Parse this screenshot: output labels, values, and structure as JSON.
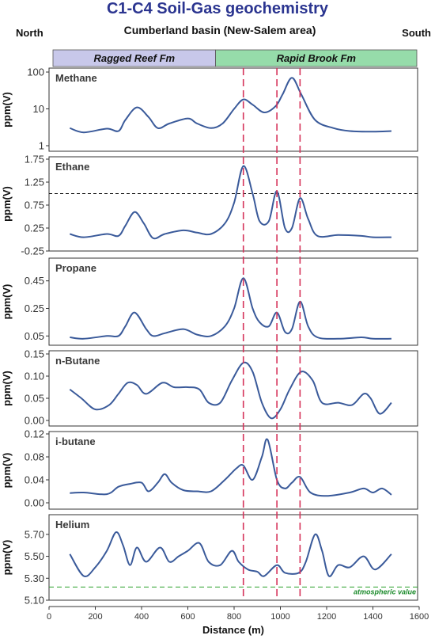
{
  "title": "C1-C4 Soil-Gas geochemistry",
  "subtitle": "Cumberland basin (New-Salem area)",
  "direction_left": "North",
  "direction_right": "South",
  "formations": [
    {
      "label": "Ragged Reef Fm",
      "x_start": 0,
      "x_end": 720,
      "color": "#c8c8ea"
    },
    {
      "label": "Rapid Brook Fm",
      "x_start": 720,
      "x_end": 1600,
      "color": "#96dcaa"
    }
  ],
  "colors": {
    "line": "#3a5a9a",
    "marker": "#d6335a",
    "threshold": "#111111",
    "atmospheric": "#2aa02a"
  },
  "chart_data": {
    "type": "line",
    "xlabel": "Distance (m)",
    "xlim": [
      0,
      1600
    ],
    "x_ticks": [
      0,
      200,
      400,
      600,
      800,
      1000,
      1200,
      1400,
      1600
    ],
    "vertical_markers_x": [
      840,
      985,
      1085
    ],
    "panels": [
      {
        "name": "Methane",
        "ylabel": "ppm(V)",
        "scale": "log",
        "ylim": [
          1,
          100
        ],
        "y_ticks": [
          1,
          10,
          100
        ],
        "y_tick_labels": [
          "1",
          "10",
          "100"
        ],
        "points": [
          [
            90,
            3
          ],
          [
            150,
            2.3
          ],
          [
            250,
            2.9
          ],
          [
            300,
            2.5
          ],
          [
            330,
            5
          ],
          [
            380,
            11
          ],
          [
            430,
            6
          ],
          [
            470,
            3
          ],
          [
            520,
            4
          ],
          [
            600,
            5.5
          ],
          [
            640,
            4
          ],
          [
            700,
            3
          ],
          [
            750,
            4
          ],
          [
            800,
            10
          ],
          [
            840,
            18
          ],
          [
            880,
            13
          ],
          [
            930,
            8
          ],
          [
            980,
            12
          ],
          [
            1010,
            25
          ],
          [
            1050,
            70
          ],
          [
            1090,
            25
          ],
          [
            1150,
            5
          ],
          [
            1230,
            3
          ],
          [
            1300,
            2.5
          ],
          [
            1400,
            2.4
          ],
          [
            1480,
            2.5
          ]
        ]
      },
      {
        "name": "Ethane",
        "ylabel": "ppm(V)",
        "scale": "linear",
        "ylim": [
          -0.25,
          1.75
        ],
        "y_ticks": [
          -0.25,
          0.25,
          0.75,
          1.25,
          1.75
        ],
        "y_tick_labels": [
          "-0.25",
          "0.25",
          "0.75",
          "1.25",
          "1.75"
        ],
        "threshold": 1.0,
        "points": [
          [
            90,
            0.12
          ],
          [
            150,
            0.05
          ],
          [
            250,
            0.12
          ],
          [
            300,
            0.08
          ],
          [
            330,
            0.3
          ],
          [
            370,
            0.6
          ],
          [
            410,
            0.35
          ],
          [
            450,
            0.03
          ],
          [
            500,
            0.12
          ],
          [
            580,
            0.2
          ],
          [
            640,
            0.15
          ],
          [
            700,
            0.12
          ],
          [
            760,
            0.35
          ],
          [
            800,
            0.8
          ],
          [
            840,
            1.6
          ],
          [
            880,
            1.0
          ],
          [
            910,
            0.4
          ],
          [
            950,
            0.4
          ],
          [
            985,
            1.05
          ],
          [
            1020,
            0.25
          ],
          [
            1050,
            0.25
          ],
          [
            1085,
            0.9
          ],
          [
            1120,
            0.45
          ],
          [
            1160,
            0.08
          ],
          [
            1250,
            0.1
          ],
          [
            1350,
            0.08
          ],
          [
            1400,
            0.05
          ],
          [
            1480,
            0.05
          ]
        ]
      },
      {
        "name": "Propane",
        "ylabel": "ppm(V)",
        "scale": "linear",
        "ylim": [
          0,
          0.5
        ],
        "y_ticks": [
          0.05,
          0.25,
          0.45
        ],
        "y_tick_labels": [
          "0.05",
          "0.25",
          "0.45"
        ],
        "points": [
          [
            90,
            0.04
          ],
          [
            150,
            0.03
          ],
          [
            250,
            0.05
          ],
          [
            300,
            0.05
          ],
          [
            330,
            0.12
          ],
          [
            370,
            0.22
          ],
          [
            420,
            0.1
          ],
          [
            450,
            0.05
          ],
          [
            500,
            0.07
          ],
          [
            580,
            0.1
          ],
          [
            640,
            0.06
          ],
          [
            700,
            0.05
          ],
          [
            760,
            0.12
          ],
          [
            800,
            0.25
          ],
          [
            840,
            0.47
          ],
          [
            880,
            0.25
          ],
          [
            910,
            0.15
          ],
          [
            950,
            0.12
          ],
          [
            985,
            0.22
          ],
          [
            1020,
            0.08
          ],
          [
            1050,
            0.1
          ],
          [
            1085,
            0.3
          ],
          [
            1120,
            0.12
          ],
          [
            1160,
            0.04
          ],
          [
            1250,
            0.03
          ],
          [
            1350,
            0.04
          ],
          [
            1400,
            0.03
          ],
          [
            1480,
            0.03
          ]
        ]
      },
      {
        "name": "n-Butane",
        "ylabel": "ppm(V)",
        "scale": "linear",
        "ylim": [
          0,
          0.15
        ],
        "y_ticks": [
          0,
          0.05,
          0.1,
          0.15
        ],
        "y_tick_labels": [
          "0.00",
          "0.05",
          "0.10",
          "0.15"
        ],
        "points": [
          [
            90,
            0.07
          ],
          [
            140,
            0.05
          ],
          [
            200,
            0.025
          ],
          [
            260,
            0.035
          ],
          [
            300,
            0.06
          ],
          [
            340,
            0.085
          ],
          [
            380,
            0.08
          ],
          [
            420,
            0.06
          ],
          [
            490,
            0.085
          ],
          [
            540,
            0.075
          ],
          [
            600,
            0.075
          ],
          [
            650,
            0.07
          ],
          [
            690,
            0.04
          ],
          [
            740,
            0.04
          ],
          [
            790,
            0.09
          ],
          [
            840,
            0.13
          ],
          [
            880,
            0.11
          ],
          [
            920,
            0.04
          ],
          [
            960,
            0.005
          ],
          [
            1000,
            0.025
          ],
          [
            1040,
            0.07
          ],
          [
            1090,
            0.11
          ],
          [
            1140,
            0.09
          ],
          [
            1180,
            0.04
          ],
          [
            1250,
            0.04
          ],
          [
            1310,
            0.035
          ],
          [
            1360,
            0.06
          ],
          [
            1390,
            0.05
          ],
          [
            1430,
            0.015
          ],
          [
            1480,
            0.04
          ]
        ]
      },
      {
        "name": "i-butane",
        "ylabel": "ppm(V)",
        "scale": "linear",
        "ylim": [
          0,
          0.12
        ],
        "y_ticks": [
          0,
          0.04,
          0.08,
          0.12
        ],
        "y_tick_labels": [
          "0.00",
          "0.04",
          "0.08",
          "0.12"
        ],
        "points": [
          [
            90,
            0.017
          ],
          [
            150,
            0.018
          ],
          [
            250,
            0.015
          ],
          [
            300,
            0.028
          ],
          [
            350,
            0.033
          ],
          [
            400,
            0.035
          ],
          [
            430,
            0.02
          ],
          [
            470,
            0.035
          ],
          [
            500,
            0.05
          ],
          [
            530,
            0.035
          ],
          [
            580,
            0.022
          ],
          [
            640,
            0.02
          ],
          [
            700,
            0.02
          ],
          [
            760,
            0.04
          ],
          [
            810,
            0.06
          ],
          [
            840,
            0.065
          ],
          [
            880,
            0.04
          ],
          [
            920,
            0.08
          ],
          [
            945,
            0.11
          ],
          [
            985,
            0.04
          ],
          [
            1020,
            0.025
          ],
          [
            1050,
            0.035
          ],
          [
            1085,
            0.045
          ],
          [
            1130,
            0.018
          ],
          [
            1200,
            0.012
          ],
          [
            1300,
            0.018
          ],
          [
            1360,
            0.025
          ],
          [
            1400,
            0.018
          ],
          [
            1440,
            0.025
          ],
          [
            1480,
            0.014
          ]
        ]
      },
      {
        "name": "Helium",
        "ylabel": "ppm(V)",
        "scale": "linear",
        "ylim": [
          5.1,
          5.8
        ],
        "y_ticks": [
          5.1,
          5.3,
          5.5,
          5.7
        ],
        "y_tick_labels": [
          "5.10",
          "5.30",
          "5.50",
          "5.70"
        ],
        "threshold": 5.22,
        "threshold_label": "atmospheric value",
        "points": [
          [
            90,
            5.52
          ],
          [
            150,
            5.32
          ],
          [
            200,
            5.4
          ],
          [
            250,
            5.55
          ],
          [
            290,
            5.72
          ],
          [
            320,
            5.6
          ],
          [
            350,
            5.42
          ],
          [
            380,
            5.58
          ],
          [
            420,
            5.45
          ],
          [
            480,
            5.58
          ],
          [
            520,
            5.45
          ],
          [
            560,
            5.5
          ],
          [
            600,
            5.55
          ],
          [
            650,
            5.62
          ],
          [
            690,
            5.45
          ],
          [
            740,
            5.42
          ],
          [
            790,
            5.55
          ],
          [
            820,
            5.45
          ],
          [
            860,
            5.38
          ],
          [
            900,
            5.36
          ],
          [
            930,
            5.32
          ],
          [
            985,
            5.42
          ],
          [
            1020,
            5.35
          ],
          [
            1080,
            5.35
          ],
          [
            1110,
            5.45
          ],
          [
            1150,
            5.7
          ],
          [
            1180,
            5.55
          ],
          [
            1210,
            5.32
          ],
          [
            1250,
            5.42
          ],
          [
            1300,
            5.4
          ],
          [
            1360,
            5.5
          ],
          [
            1410,
            5.38
          ],
          [
            1480,
            5.52
          ]
        ]
      }
    ]
  }
}
